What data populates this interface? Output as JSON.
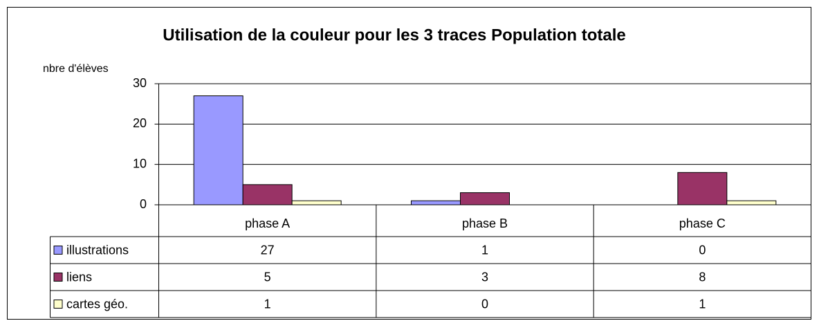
{
  "chart_data": {
    "type": "bar",
    "title": "Utilisation de la couleur pour les 3 traces Population totale",
    "y_label": "nbre d'élèves",
    "categories": [
      "phase A",
      "phase B",
      "phase C"
    ],
    "series": [
      {
        "name": "illustrations",
        "color": "#9999ff",
        "values": [
          27,
          1,
          0
        ]
      },
      {
        "name": "liens",
        "color": "#993366",
        "values": [
          5,
          3,
          8
        ]
      },
      {
        "name": "cartes géo.",
        "color": "#ffffcc",
        "values": [
          1,
          0,
          1
        ]
      }
    ],
    "ylim": [
      0,
      30
    ],
    "yticks": [
      0,
      10,
      20,
      30
    ],
    "grid": true,
    "data_table": true
  }
}
